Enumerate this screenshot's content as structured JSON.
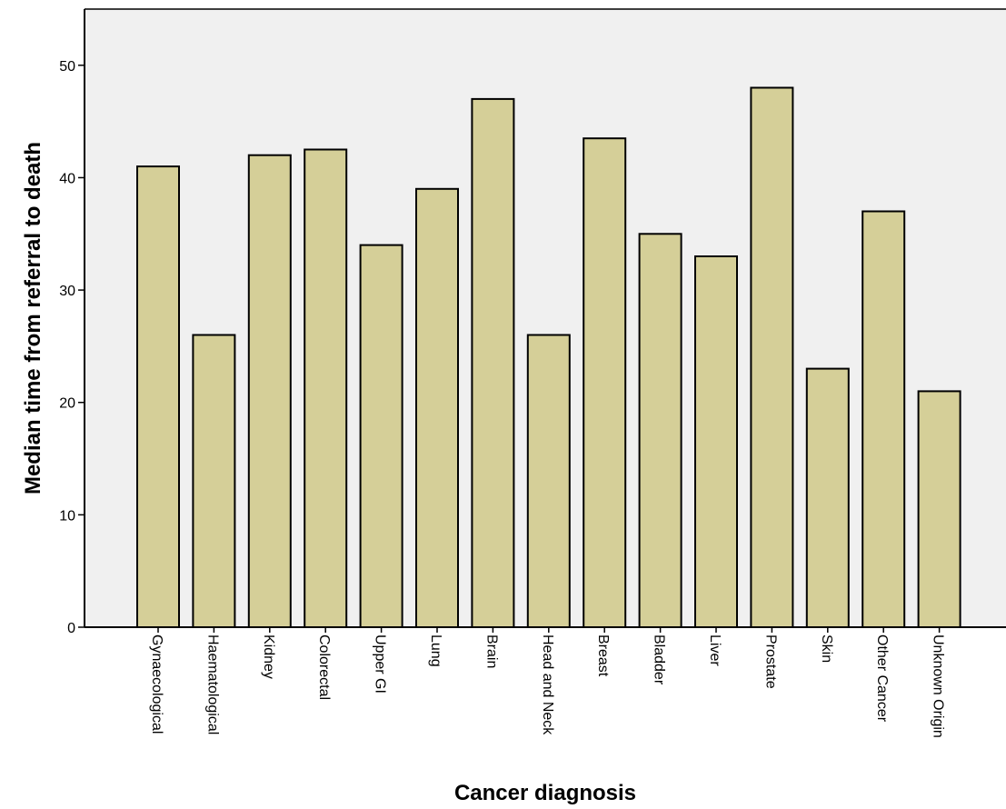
{
  "chart_data": {
    "type": "bar",
    "title": "",
    "xlabel": "Cancer diagnosis",
    "ylabel": "Median time from referral to death",
    "categories": [
      "Gynaecological",
      "Haematological",
      "Kidney",
      "Colorectal",
      "Upper GI",
      "Lung",
      "Brain",
      "Head and Neck",
      "Breast",
      "Bladder",
      "Liver",
      "Prostate",
      "Skin",
      "Other Cancer",
      "Unknown Origin"
    ],
    "values": [
      41,
      26,
      42,
      42.5,
      34,
      39,
      47,
      26,
      43.5,
      35,
      33,
      48,
      23,
      37,
      21
    ],
    "ylim": [
      0,
      55
    ],
    "yticks": [
      0,
      10,
      20,
      30,
      40,
      50
    ],
    "grid": false,
    "legend": "none",
    "colors": {
      "bar_fill": "#d5cf98",
      "bar_stroke": "#000000",
      "plot_background": "#f0f0f0",
      "page_background": "#ffffff"
    }
  }
}
